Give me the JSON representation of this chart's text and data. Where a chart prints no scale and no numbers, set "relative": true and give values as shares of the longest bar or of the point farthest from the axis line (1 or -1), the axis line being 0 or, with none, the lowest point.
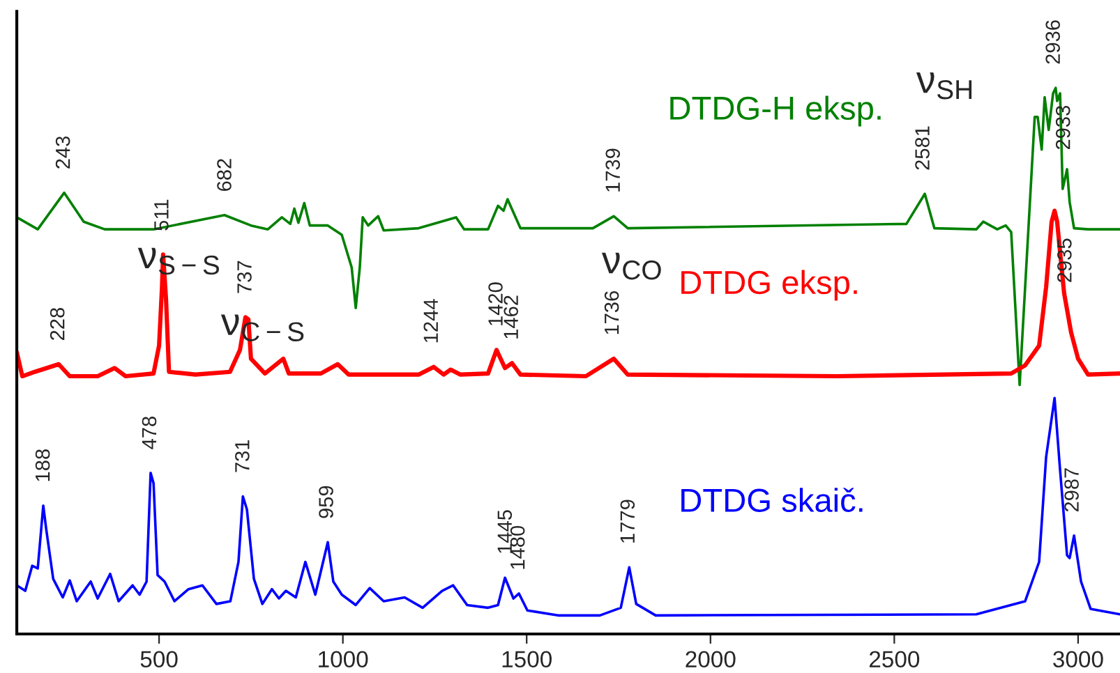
{
  "chart_data": {
    "type": "line",
    "relative": true,
    "xlim": [
      113,
      3114
    ],
    "xticks": [
      500,
      1000,
      1500,
      2000,
      2500,
      3000
    ],
    "grid": false,
    "marker": "none",
    "line_style": "solid",
    "tick_labels": "x",
    "series": [
      {
        "name": "DTDG-H eksp.",
        "color": "#008000",
        "x": [
          113,
          170,
          242,
          295,
          352,
          485,
          678,
          750,
          796,
          834,
          857,
          868,
          879,
          895,
          910,
          959,
          997,
          1024,
          1035,
          1046,
          1054,
          1069,
          1096,
          1111,
          1206,
          1308,
          1330,
          1395,
          1422,
          1437,
          1448,
          1483,
          1585,
          1680,
          1737,
          1775,
          2533,
          2583,
          2609,
          2723,
          2742,
          2780,
          2803,
          2818,
          2841,
          2882,
          2890,
          2901,
          2909,
          2920,
          2932,
          2939,
          2943,
          2951,
          2958,
          2970,
          2977,
          2989,
          3027,
          3114
        ],
        "values": [
          0.763,
          0.741,
          0.808,
          0.755,
          0.741,
          0.741,
          0.767,
          0.748,
          0.741,
          0.763,
          0.751,
          0.779,
          0.753,
          0.789,
          0.748,
          0.748,
          0.731,
          0.671,
          0.597,
          0.671,
          0.763,
          0.748,
          0.765,
          0.739,
          0.743,
          0.763,
          0.741,
          0.741,
          0.784,
          0.775,
          0.796,
          0.743,
          0.743,
          0.743,
          0.765,
          0.743,
          0.751,
          0.806,
          0.743,
          0.741,
          0.755,
          0.741,
          0.748,
          0.736,
          0.456,
          0.947,
          0.947,
          0.887,
          0.983,
          0.923,
          0.99,
          1.0,
          0.976,
          0.99,
          0.815,
          0.851,
          0.791,
          0.743,
          0.741,
          0.741
        ]
      },
      {
        "name": "DTDG eksp.",
        "color": "#ff0000",
        "x": [
          113,
          128,
          162,
          227,
          257,
          333,
          379,
          409,
          485,
          500,
          508,
          511,
          519,
          527,
          599,
          693,
          720,
          735,
          743,
          750,
          788,
          838,
          853,
          940,
          986,
          1016,
          1206,
          1247,
          1274,
          1293,
          1320,
          1395,
          1418,
          1441,
          1460,
          1483,
          1661,
          1737,
          1775,
          2344,
          2818,
          2856,
          2894,
          2913,
          2928,
          2936,
          2943,
          2962,
          2981,
          3000,
          3027,
          3114
        ],
        "values": [
          0.516,
          0.472,
          0.48,
          0.494,
          0.472,
          0.472,
          0.487,
          0.472,
          0.477,
          0.528,
          0.635,
          0.695,
          0.612,
          0.48,
          0.475,
          0.48,
          0.52,
          0.58,
          0.576,
          0.504,
          0.477,
          0.504,
          0.477,
          0.477,
          0.494,
          0.475,
          0.475,
          0.489,
          0.475,
          0.484,
          0.475,
          0.477,
          0.52,
          0.487,
          0.496,
          0.475,
          0.472,
          0.504,
          0.475,
          0.472,
          0.477,
          0.492,
          0.528,
          0.635,
          0.755,
          0.775,
          0.755,
          0.624,
          0.552,
          0.504,
          0.475,
          0.477
        ]
      },
      {
        "name": "DTDG skaič.",
        "color": "#0000ff",
        "x": [
          113,
          136,
          155,
          170,
          185,
          193,
          212,
          238,
          257,
          276,
          314,
          333,
          367,
          390,
          428,
          447,
          466,
          477,
          485,
          496,
          515,
          542,
          580,
          618,
          656,
          694,
          716,
          728,
          739,
          758,
          781,
          807,
          826,
          845,
          872,
          898,
          925,
          959,
          974,
          997,
          1035,
          1073,
          1111,
          1168,
          1217,
          1270,
          1300,
          1338,
          1395,
          1422,
          1441,
          1464,
          1479,
          1502,
          1585,
          1699,
          1756,
          1779,
          1798,
          1851,
          2723,
          2856,
          2894,
          2913,
          2936,
          2951,
          2970,
          2977,
          2989,
          3008,
          3034,
          3114
        ],
        "values": [
          0.089,
          0.079,
          0.125,
          0.12,
          0.235,
          0.192,
          0.101,
          0.067,
          0.098,
          0.06,
          0.096,
          0.065,
          0.11,
          0.06,
          0.089,
          0.072,
          0.096,
          0.295,
          0.276,
          0.108,
          0.096,
          0.06,
          0.082,
          0.089,
          0.055,
          0.06,
          0.132,
          0.252,
          0.228,
          0.101,
          0.055,
          0.082,
          0.065,
          0.079,
          0.067,
          0.132,
          0.072,
          0.168,
          0.096,
          0.072,
          0.053,
          0.084,
          0.06,
          0.067,
          0.048,
          0.079,
          0.089,
          0.053,
          0.048,
          0.053,
          0.103,
          0.065,
          0.074,
          0.043,
          0.034,
          0.034,
          0.048,
          0.122,
          0.055,
          0.034,
          0.036,
          0.06,
          0.132,
          0.324,
          0.432,
          0.3,
          0.144,
          0.139,
          0.18,
          0.096,
          0.046,
          0.036
        ]
      }
    ],
    "annotations": [
      {
        "text": "243",
        "x": 243,
        "y": 0.808
      },
      {
        "text": "682",
        "x": 682,
        "y": 0.767
      },
      {
        "text": "1739",
        "x": 1739,
        "y": 0.765
      },
      {
        "text": "2581",
        "x": 2581,
        "y": 0.806
      },
      {
        "text": "2936",
        "x": 2936,
        "y": 1.0
      },
      {
        "text": "2933",
        "x": 2932,
        "y": 0.99
      },
      {
        "text": "ν$_{SH}$",
        "x": 2581,
        "y": 0.806
      },
      {
        "text": "228",
        "x": 228,
        "y": 0.494
      },
      {
        "text": "511",
        "x": 511,
        "y": 0.695
      },
      {
        "text": "ν$_{S−S}$",
        "x": 511,
        "y": 0.695
      },
      {
        "text": "737",
        "x": 737,
        "y": 0.58
      },
      {
        "text": "ν$_{C−S}$",
        "x": 737,
        "y": 0.58
      },
      {
        "text": "1244",
        "x": 1244,
        "y": 0.489
      },
      {
        "text": "1420",
        "x": 1420,
        "y": 0.52
      },
      {
        "text": "1462",
        "x": 1462,
        "y": 0.496
      },
      {
        "text": "1736",
        "x": 1736,
        "y": 0.504
      },
      {
        "text": "ν$_{CO}$",
        "x": 1736,
        "y": 0.504
      },
      {
        "text": "2935",
        "x": 2936,
        "y": 0.775
      },
      {
        "text": "188",
        "x": 188,
        "y": 0.235
      },
      {
        "text": "478",
        "x": 478,
        "y": 0.295
      },
      {
        "text": "731",
        "x": 731,
        "y": 0.252
      },
      {
        "text": "959",
        "x": 959,
        "y": 0.168
      },
      {
        "text": "1445",
        "x": 1445,
        "y": 0.103
      },
      {
        "text": "1480",
        "x": 1480,
        "y": 0.074
      },
      {
        "text": "1779",
        "x": 1779,
        "y": 0.122
      },
      {
        "text": "2987",
        "x": 2987,
        "y": 0.18
      }
    ]
  }
}
